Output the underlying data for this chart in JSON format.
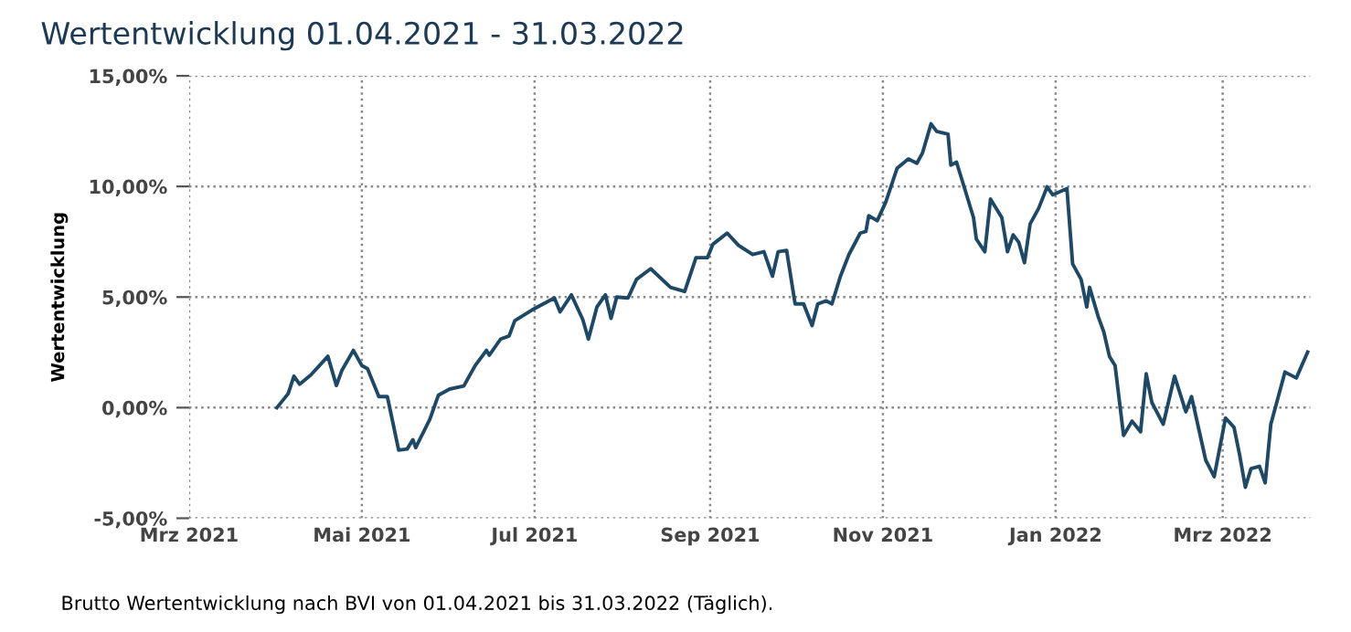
{
  "chart_data": {
    "type": "line",
    "title": "Wertentwicklung 01.04.2021 - 31.03.2022",
    "ylabel": "Wertentwicklung",
    "annotations": [
      "Brutto Wertentwicklung nach BVI von 01.04.2021 bis 31.03.2022 (Täglich)."
    ],
    "x": [
      "2021-04-01",
      "2021-04-05",
      "2021-04-07",
      "2021-04-09",
      "2021-04-13",
      "2021-04-19",
      "2021-04-22",
      "2021-04-24",
      "2021-04-28",
      "2021-05-01",
      "2021-05-03",
      "2021-05-07",
      "2021-05-10",
      "2021-05-14",
      "2021-05-17",
      "2021-05-19",
      "2021-05-20",
      "2021-05-25",
      "2021-05-28",
      "2021-06-01",
      "2021-06-06",
      "2021-06-10",
      "2021-06-14",
      "2021-06-15",
      "2021-06-19",
      "2021-06-22",
      "2021-06-24",
      "2021-06-30",
      "2021-07-08",
      "2021-07-10",
      "2021-07-14",
      "2021-07-18",
      "2021-07-20",
      "2021-07-23",
      "2021-07-26",
      "2021-07-28",
      "2021-07-30",
      "2021-08-03",
      "2021-08-06",
      "2021-08-11",
      "2021-08-18",
      "2021-08-23",
      "2021-08-27",
      "2021-08-31",
      "2021-09-02",
      "2021-09-07",
      "2021-09-11",
      "2021-09-16",
      "2021-09-20",
      "2021-09-23",
      "2021-09-25",
      "2021-09-28",
      "2021-10-01",
      "2021-10-04",
      "2021-10-07",
      "2021-10-09",
      "2021-10-12",
      "2021-10-14",
      "2021-10-17",
      "2021-10-20",
      "2021-10-24",
      "2021-10-26",
      "2021-10-27",
      "2021-10-30",
      "2021-11-02",
      "2021-11-06",
      "2021-11-10",
      "2021-11-13",
      "2021-11-15",
      "2021-11-18",
      "2021-11-20",
      "2021-11-24",
      "2021-11-25",
      "2021-11-27",
      "2021-11-30",
      "2021-12-03",
      "2021-12-04",
      "2021-12-07",
      "2021-12-09",
      "2021-12-13",
      "2021-12-15",
      "2021-12-17",
      "2021-12-19",
      "2021-12-21",
      "2021-12-23",
      "2021-12-26",
      "2021-12-29",
      "2021-12-31",
      "2022-01-05",
      "2022-01-07",
      "2022-01-10",
      "2022-01-12",
      "2022-01-13",
      "2022-01-16",
      "2022-01-18",
      "2022-01-20",
      "2022-01-22",
      "2022-01-25",
      "2022-01-28",
      "2022-01-31",
      "2022-02-02",
      "2022-02-04",
      "2022-02-08",
      "2022-02-12",
      "2022-02-16",
      "2022-02-18",
      "2022-02-23",
      "2022-02-26",
      "2022-03-02",
      "2022-03-05",
      "2022-03-07",
      "2022-03-09",
      "2022-03-11",
      "2022-03-14",
      "2022-03-16",
      "2022-03-18",
      "2022-03-23",
      "2022-03-27",
      "2022-03-31"
    ],
    "series": [
      {
        "color": "#1d4866",
        "values": [
          0.0,
          0.64,
          1.42,
          1.06,
          1.48,
          2.32,
          1.0,
          1.7,
          2.59,
          1.9,
          1.76,
          0.5,
          0.5,
          -1.92,
          -1.87,
          -1.45,
          -1.81,
          -0.53,
          0.56,
          0.84,
          0.98,
          1.9,
          2.59,
          2.37,
          3.1,
          3.24,
          3.93,
          4.41,
          4.96,
          4.33,
          5.1,
          3.99,
          3.1,
          4.55,
          5.1,
          4.04,
          5.0,
          4.96,
          5.8,
          6.28,
          5.44,
          5.25,
          6.78,
          6.78,
          7.39,
          7.89,
          7.34,
          6.92,
          7.05,
          5.94,
          7.05,
          7.11,
          4.69,
          4.69,
          3.71,
          4.69,
          4.83,
          4.69,
          5.94,
          6.92,
          7.89,
          7.97,
          8.68,
          8.45,
          9.29,
          10.82,
          11.24,
          11.05,
          11.52,
          12.83,
          12.49,
          12.36,
          10.96,
          11.1,
          9.85,
          8.59,
          7.62,
          7.05,
          9.43,
          8.59,
          7.05,
          7.81,
          7.47,
          6.55,
          8.31,
          9.01,
          9.98,
          9.62,
          9.9,
          6.5,
          5.8,
          4.55,
          5.44,
          4.13,
          3.43,
          2.32,
          1.9,
          -1.26,
          -0.61,
          -1.09,
          1.53,
          0.23,
          -0.75,
          1.42,
          -0.19,
          0.5,
          -2.37,
          -3.12,
          -0.47,
          -0.89,
          -2.15,
          -3.6,
          -2.76,
          -2.65,
          -3.4,
          -0.75,
          1.61,
          1.34,
          2.51
        ]
      }
    ],
    "xlim": [
      "2021-03-01",
      "2022-04-01"
    ],
    "xticks": [
      {
        "value": "2021-03-01",
        "label": "Mrz 2021"
      },
      {
        "value": "2021-05-01",
        "label": "Mai 2021"
      },
      {
        "value": "2021-07-01",
        "label": "Jul 2021"
      },
      {
        "value": "2021-09-01",
        "label": "Sep 2021"
      },
      {
        "value": "2021-11-01",
        "label": "Nov 2021"
      },
      {
        "value": "2022-01-01",
        "label": "Jan 2022"
      },
      {
        "value": "2022-03-01",
        "label": "Mrz 2022"
      }
    ],
    "ylim": [
      -5,
      15
    ],
    "yticks": [
      {
        "value": -5,
        "label": "-5,00%"
      },
      {
        "value": 0,
        "label": "0,00%"
      },
      {
        "value": 5,
        "label": "5,00%"
      },
      {
        "value": 10,
        "label": "10,00%"
      },
      {
        "value": 15,
        "label": "15,00%"
      }
    ],
    "grid": true,
    "line_style": "solid",
    "marker": "none"
  }
}
